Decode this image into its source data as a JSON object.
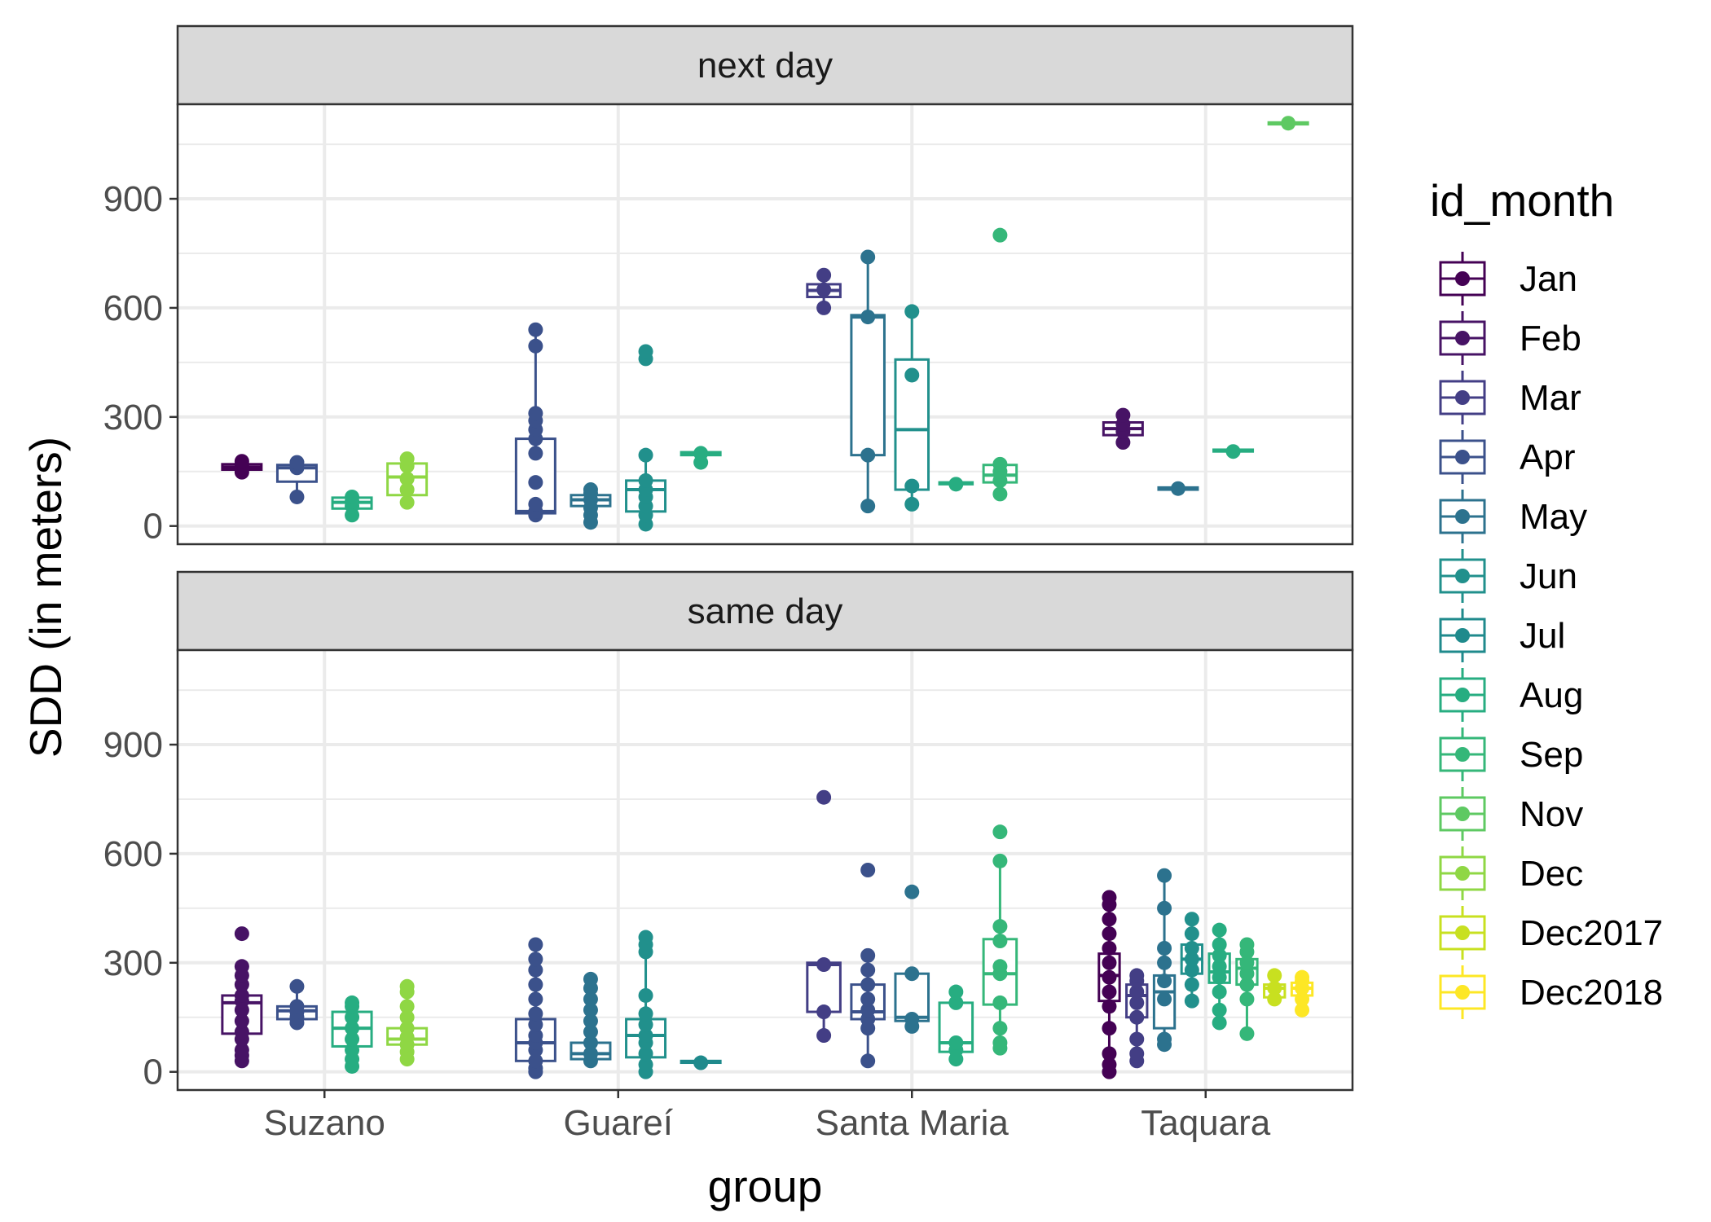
{
  "chart_data": {
    "type": "boxplot",
    "xlabel": "group",
    "ylabel": "SDD (in meters)",
    "categories": [
      "Suzano",
      "Guareí",
      "Santa Maria",
      "Taquara"
    ],
    "y_ticks": [
      0,
      300,
      600,
      900
    ],
    "ylim": [
      -50,
      1160
    ],
    "grid": true,
    "legend": {
      "title": "id_month",
      "placement": "right",
      "items": [
        {
          "name": "Jan",
          "color": "#440154"
        },
        {
          "name": "Feb",
          "color": "#471365"
        },
        {
          "name": "Mar",
          "color": "#433E85"
        },
        {
          "name": "Apr",
          "color": "#3B518B"
        },
        {
          "name": "May",
          "color": "#2C728E"
        },
        {
          "name": "Jun",
          "color": "#21908C"
        },
        {
          "name": "Jul",
          "color": "#1F8A8C"
        },
        {
          "name": "Aug",
          "color": "#27AD81"
        },
        {
          "name": "Sep",
          "color": "#35B779"
        },
        {
          "name": "Nov",
          "color": "#5EC962"
        },
        {
          "name": "Dec",
          "color": "#8FD744"
        },
        {
          "name": "Dec2017",
          "color": "#C8E020"
        },
        {
          "name": "Dec2018",
          "color": "#FDE725"
        }
      ]
    },
    "panels": [
      {
        "label": "next day",
        "boxes": [
          {
            "group": "Suzano",
            "month": "Jan",
            "q1": 155,
            "median": 162,
            "q3": 170,
            "lo": 148,
            "hi": 178,
            "points": [
              148,
              158,
              162,
              170,
              178
            ]
          },
          {
            "group": "Suzano",
            "month": "Apr",
            "q1": 122,
            "median": 160,
            "q3": 168,
            "lo": 80,
            "hi": 178,
            "points": [
              80,
              160,
              175
            ]
          },
          {
            "group": "Suzano",
            "month": "Aug",
            "q1": 48,
            "median": 65,
            "q3": 78,
            "lo": 30,
            "hi": 82,
            "points": [
              30,
              55,
              68,
              80
            ]
          },
          {
            "group": "Suzano",
            "month": "Dec",
            "q1": 85,
            "median": 135,
            "q3": 172,
            "lo": 65,
            "hi": 185,
            "points": [
              65,
              100,
              130,
              165,
              185
            ]
          },
          {
            "group": "Guareí",
            "month": "Apr",
            "q1": 35,
            "median": 40,
            "q3": 240,
            "lo": 30,
            "hi": 540,
            "points": [
              30,
              35,
              40,
              60,
              120,
              200,
              240,
              265,
              290,
              310,
              495,
              540
            ]
          },
          {
            "group": "Guareí",
            "month": "May",
            "q1": 55,
            "median": 72,
            "q3": 85,
            "lo": 10,
            "hi": 100,
            "points": [
              10,
              30,
              50,
              72,
              90,
              100
            ]
          },
          {
            "group": "Guareí",
            "month": "Jun",
            "q1": 40,
            "median": 100,
            "q3": 125,
            "lo": 5,
            "hi": 195,
            "points": [
              5,
              30,
              55,
              80,
              100,
              125,
              195,
              460,
              480
            ]
          },
          {
            "group": "Guareí",
            "month": "Aug",
            "q1": 195,
            "median": 200,
            "q3": 203,
            "lo": 175,
            "hi": 205,
            "points": [
              175,
              200
            ]
          },
          {
            "group": "Santa Maria",
            "month": "Mar",
            "q1": 630,
            "median": 648,
            "q3": 665,
            "lo": 600,
            "hi": 690,
            "points": [
              600,
              650,
              690
            ]
          },
          {
            "group": "Santa Maria",
            "month": "May",
            "q1": 195,
            "median": 575,
            "q3": 580,
            "lo": 55,
            "hi": 740,
            "points": [
              55,
              195,
              575,
              740
            ]
          },
          {
            "group": "Santa Maria",
            "month": "Jun",
            "q1": 100,
            "median": 265,
            "q3": 458,
            "lo": 60,
            "hi": 590,
            "points": [
              60,
              110,
              415,
              590
            ]
          },
          {
            "group": "Santa Maria",
            "month": "Aug",
            "q1": 115,
            "median": 118,
            "q3": 120,
            "lo": 112,
            "hi": 122,
            "points": [
              115
            ]
          },
          {
            "group": "Santa Maria",
            "month": "Sep",
            "q1": 120,
            "median": 140,
            "q3": 168,
            "lo": 88,
            "hi": 175,
            "points": [
              88,
              125,
              150,
              170,
              800
            ]
          },
          {
            "group": "Taquara",
            "month": "Feb",
            "q1": 250,
            "median": 268,
            "q3": 285,
            "lo": 230,
            "hi": 305,
            "points": [
              230,
              260,
              280,
              305
            ]
          },
          {
            "group": "Taquara",
            "month": "May",
            "q1": 100,
            "median": 103,
            "q3": 106,
            "lo": 100,
            "hi": 106,
            "points": [
              103
            ]
          },
          {
            "group": "Taquara",
            "month": "Aug",
            "q1": 205,
            "median": 208,
            "q3": 210,
            "lo": 200,
            "hi": 215,
            "points": [
              205
            ]
          },
          {
            "group": "Taquara",
            "month": "Nov",
            "q1": 1105,
            "median": 1108,
            "q3": 1110,
            "lo": 1103,
            "hi": 1112,
            "points": [
              1108
            ]
          }
        ]
      },
      {
        "label": "same day",
        "boxes": [
          {
            "group": "Suzano",
            "month": "Feb",
            "q1": 105,
            "median": 190,
            "q3": 210,
            "lo": 30,
            "hi": 290,
            "points": [
              30,
              45,
              60,
              90,
              110,
              140,
              170,
              195,
              210,
              240,
              265,
              290,
              380
            ]
          },
          {
            "group": "Suzano",
            "month": "Apr",
            "q1": 145,
            "median": 168,
            "q3": 180,
            "lo": 135,
            "hi": 235,
            "points": [
              135,
              150,
              165,
              180,
              235
            ]
          },
          {
            "group": "Suzano",
            "month": "Aug",
            "q1": 70,
            "median": 120,
            "q3": 165,
            "lo": 15,
            "hi": 190,
            "points": [
              15,
              35,
              60,
              90,
              120,
              150,
              180,
              190
            ]
          },
          {
            "group": "Suzano",
            "month": "Dec",
            "q1": 75,
            "median": 90,
            "q3": 120,
            "lo": 35,
            "hi": 235,
            "points": [
              35,
              55,
              75,
              95,
              120,
              150,
              180,
              220,
              235
            ]
          },
          {
            "group": "Guareí",
            "month": "Apr",
            "q1": 30,
            "median": 80,
            "q3": 145,
            "lo": 0,
            "hi": 350,
            "points": [
              0,
              10,
              30,
              60,
              80,
              100,
              130,
              160,
              200,
              240,
              280,
              310,
              350
            ]
          },
          {
            "group": "Guareí",
            "month": "May",
            "q1": 35,
            "median": 50,
            "q3": 80,
            "lo": 30,
            "hi": 255,
            "points": [
              30,
              50,
              80,
              110,
              140,
              170,
              200,
              230,
              255
            ]
          },
          {
            "group": "Guareí",
            "month": "Jun",
            "q1": 40,
            "median": 100,
            "q3": 145,
            "lo": 0,
            "hi": 370,
            "points": [
              0,
              20,
              50,
              80,
              100,
              130,
              160,
              210,
              330,
              350,
              370
            ]
          },
          {
            "group": "Guareí",
            "month": "Jul",
            "q1": 25,
            "median": 28,
            "q3": 30,
            "lo": 22,
            "hi": 32,
            "points": [
              25
            ]
          },
          {
            "group": "Santa Maria",
            "month": "Mar",
            "q1": 165,
            "median": 295,
            "q3": 300,
            "lo": 100,
            "hi": 300,
            "points": [
              100,
              165,
              295,
              755
            ]
          },
          {
            "group": "Santa Maria",
            "month": "Apr",
            "q1": 145,
            "median": 165,
            "q3": 240,
            "lo": 30,
            "hi": 320,
            "points": [
              30,
              120,
              145,
              170,
              200,
              240,
              280,
              320,
              555
            ]
          },
          {
            "group": "Santa Maria",
            "month": "May",
            "q1": 140,
            "median": 150,
            "q3": 270,
            "lo": 125,
            "hi": 270,
            "points": [
              125,
              145,
              270,
              495
            ]
          },
          {
            "group": "Santa Maria",
            "month": "Aug",
            "q1": 55,
            "median": 80,
            "q3": 190,
            "lo": 35,
            "hi": 220,
            "points": [
              35,
              60,
              80,
              190,
              220
            ]
          },
          {
            "group": "Santa Maria",
            "month": "Sep",
            "q1": 185,
            "median": 270,
            "q3": 365,
            "lo": 65,
            "hi": 580,
            "points": [
              65,
              80,
              120,
              190,
              270,
              290,
              360,
              400,
              580,
              660
            ]
          },
          {
            "group": "Taquara",
            "month": "Jan",
            "q1": 195,
            "median": 265,
            "q3": 325,
            "lo": 0,
            "hi": 480,
            "points": [
              0,
              20,
              50,
              120,
              180,
              220,
              260,
              300,
              340,
              380,
              420,
              460,
              480
            ]
          },
          {
            "group": "Taquara",
            "month": "Mar",
            "q1": 150,
            "median": 210,
            "q3": 240,
            "lo": 30,
            "hi": 265,
            "points": [
              30,
              50,
              90,
              150,
              190,
              220,
              250,
              265
            ]
          },
          {
            "group": "Taquara",
            "month": "May",
            "q1": 120,
            "median": 220,
            "q3": 265,
            "lo": 75,
            "hi": 540,
            "points": [
              75,
              90,
              200,
              250,
              300,
              340,
              450,
              540
            ]
          },
          {
            "group": "Taquara",
            "month": "Jun",
            "q1": 270,
            "median": 310,
            "q3": 350,
            "lo": 195,
            "hi": 420,
            "points": [
              195,
              240,
              280,
              310,
              340,
              380,
              420
            ]
          },
          {
            "group": "Taquara",
            "month": "Aug",
            "q1": 245,
            "median": 275,
            "q3": 325,
            "lo": 135,
            "hi": 390,
            "points": [
              135,
              170,
              220,
              260,
              290,
              320,
              350,
              390
            ]
          },
          {
            "group": "Taquara",
            "month": "Sep",
            "q1": 240,
            "median": 285,
            "q3": 310,
            "lo": 105,
            "hi": 350,
            "points": [
              105,
              200,
              240,
              270,
              300,
              330,
              350
            ]
          },
          {
            "group": "Taquara",
            "month": "Dec2017",
            "q1": 205,
            "median": 230,
            "q3": 240,
            "lo": 200,
            "hi": 265,
            "points": [
              200,
              230,
              265
            ]
          },
          {
            "group": "Taquara",
            "month": "Dec2018",
            "q1": 210,
            "median": 230,
            "q3": 245,
            "lo": 170,
            "hi": 260,
            "points": [
              170,
              200,
              230,
              250,
              260
            ]
          }
        ]
      }
    ]
  }
}
